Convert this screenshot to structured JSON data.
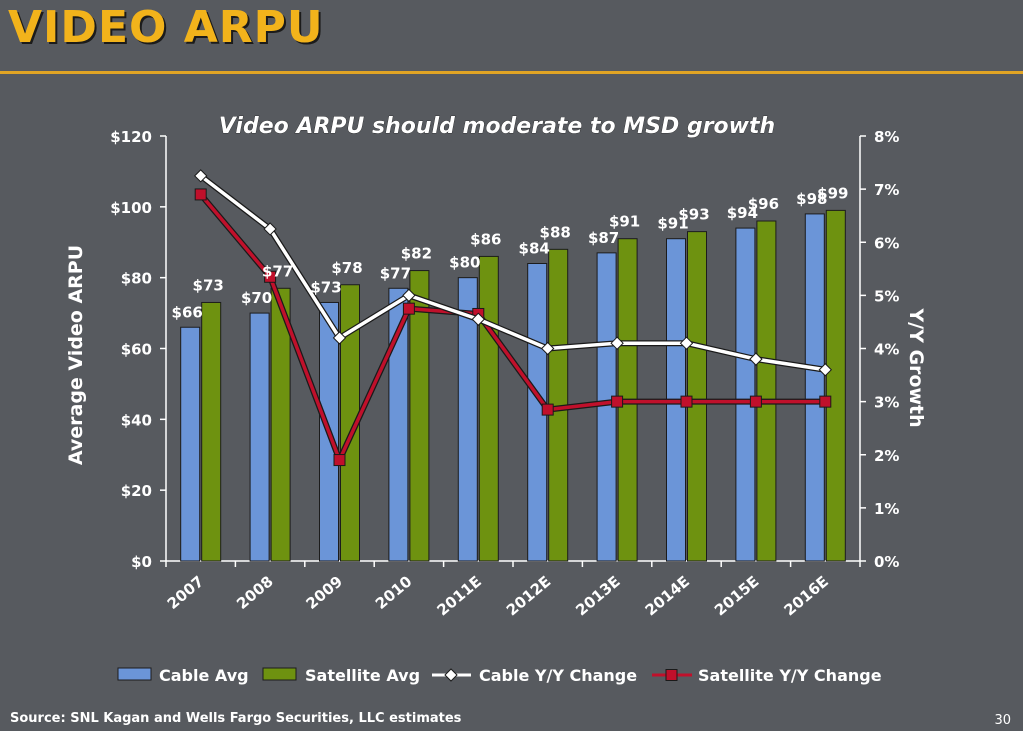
{
  "slide": {
    "title": "VIDEO ARPU",
    "source": "Source: SNL Kagan and Wells Fargo Securities, LLC estimates",
    "page_number": "30"
  },
  "colors": {
    "background": "#575a5f",
    "title": "#f2b31b",
    "cable_bar": "#6b95d8",
    "satellite_bar": "#6e9210",
    "cable_line": "#ffffff",
    "satellite_line": "#c0102b"
  },
  "chart_data": {
    "type": "bar",
    "title": "Video ARPU should moderate to MSD growth",
    "ylabel": "Average Video ARPU",
    "y2label": "Y/Y Growth",
    "categories": [
      "2007",
      "2008",
      "2009",
      "2010",
      "2011E",
      "2012E",
      "2013E",
      "2014E",
      "2015E",
      "2016E"
    ],
    "ylim": [
      0,
      120
    ],
    "yticks": [
      "$0",
      "$20",
      "$40",
      "$60",
      "$80",
      "$100",
      "$120"
    ],
    "y2lim": [
      0,
      8
    ],
    "y2ticks": [
      "0%",
      "1%",
      "2%",
      "3%",
      "4%",
      "5%",
      "6%",
      "7%",
      "8%"
    ],
    "series": [
      {
        "name": "Cable Avg",
        "kind": "bar",
        "axis": "left",
        "values": [
          66,
          70,
          73,
          77,
          80,
          84,
          87,
          91,
          94,
          98
        ],
        "labels": [
          "$66",
          "$70",
          "$73",
          "$77",
          "$80",
          "$84",
          "$87",
          "$91",
          "$94",
          "$98"
        ]
      },
      {
        "name": "Satellite Avg",
        "kind": "bar",
        "axis": "left",
        "values": [
          73,
          77,
          78,
          82,
          86,
          88,
          91,
          93,
          96,
          99
        ],
        "labels": [
          "$73",
          "$77",
          "$78",
          "$82",
          "$86",
          "$88",
          "$91",
          "$93",
          "$96",
          "$99"
        ]
      },
      {
        "name": "Cable Y/Y Change",
        "kind": "line",
        "axis": "right",
        "marker": "diamond",
        "values": [
          7.25,
          6.25,
          4.2,
          5.0,
          4.55,
          4.0,
          4.1,
          4.1,
          3.8,
          3.6
        ]
      },
      {
        "name": "Satellite Y/Y Change",
        "kind": "line",
        "axis": "right",
        "marker": "square",
        "values": [
          6.9,
          5.35,
          1.9,
          4.75,
          4.65,
          2.85,
          3.0,
          3.0,
          3.0,
          3.0
        ]
      }
    ],
    "legend_position": "bottom",
    "grid": false
  }
}
